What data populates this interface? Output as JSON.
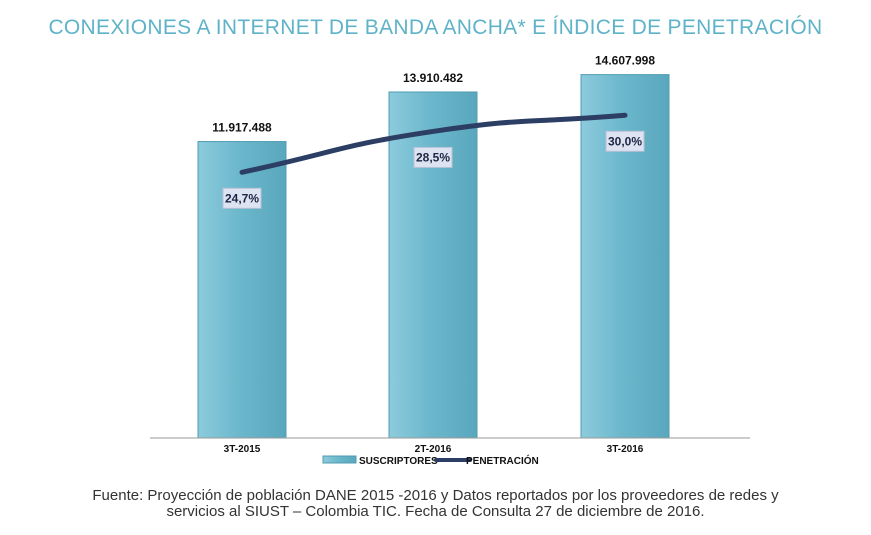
{
  "chart_data": {
    "type": "bar",
    "title": "CONEXIONES A INTERNET DE BANDA ANCHA* E ÍNDICE DE PENETRACIÓN",
    "categories": [
      "3T-2015",
      "2T-2016",
      "3T-2016"
    ],
    "series": [
      {
        "name": "SUSCRIPTORES",
        "type": "bar",
        "values": [
          11917488,
          13910482,
          14607998
        ],
        "labels": [
          "11.917.488",
          "13.910.482",
          "14.607.998"
        ],
        "color": "#6cb7cc"
      },
      {
        "name": "PENETRACIÓN",
        "type": "line",
        "values": [
          24.7,
          28.5,
          30.0
        ],
        "labels": [
          "24,7%",
          "28,5%",
          "30,0%"
        ],
        "color": "#2c3e63"
      }
    ],
    "ylim": [
      0,
      16000000
    ],
    "y2lim": [
      0,
      37
    ],
    "grid": false,
    "legend": "bottom"
  },
  "source": {
    "line1": "Fuente: Proyección de población DANE 2015 -2016 y Datos reportados por los proveedores de redes y",
    "line2": "servicios al SIUST – Colombia TIC. Fecha de Consulta 27 de diciembre de 2016."
  }
}
